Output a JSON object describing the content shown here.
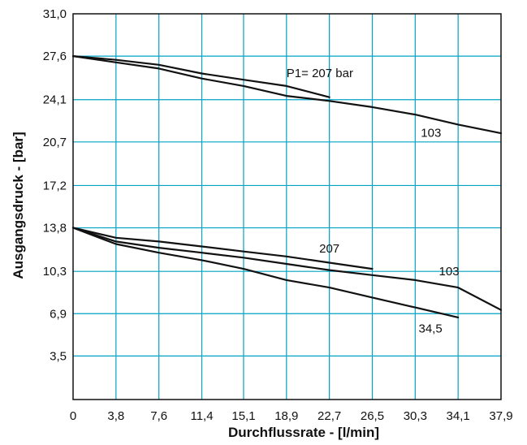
{
  "chart_data": {
    "type": "line",
    "title": "",
    "xlabel": "Durchflussrate - [l/min]",
    "ylabel": "Ausgangsdruck - [bar]",
    "xlim": [
      0,
      37.9
    ],
    "ylim": [
      0,
      31.0
    ],
    "x_ticks": [
      "0",
      "3,8",
      "7,6",
      "11,4",
      "15,1",
      "18,9",
      "22,7",
      "26,5",
      "30,3",
      "34,1",
      "37,9"
    ],
    "y_ticks": [
      "3,5",
      "6,9",
      "10,3",
      "13,8",
      "17,2",
      "20,7",
      "24,1",
      "27,6",
      "31,0"
    ],
    "grid": true,
    "grid_color": "#00a3c4",
    "line_color": "#111111",
    "series": [
      {
        "name": "P1= 207 bar",
        "values": [
          [
            0,
            27.6
          ],
          [
            3.8,
            27.3
          ],
          [
            7.6,
            26.9
          ],
          [
            11.4,
            26.2
          ],
          [
            15.1,
            25.7
          ],
          [
            18.9,
            25.2
          ],
          [
            22.7,
            24.3
          ]
        ]
      },
      {
        "name": "103",
        "values": [
          [
            0,
            27.6
          ],
          [
            3.8,
            27.1
          ],
          [
            7.6,
            26.6
          ],
          [
            11.4,
            25.8
          ],
          [
            15.1,
            25.2
          ],
          [
            18.9,
            24.4
          ],
          [
            22.7,
            24.0
          ],
          [
            26.5,
            23.5
          ],
          [
            30.3,
            22.9
          ],
          [
            34.1,
            22.1
          ],
          [
            37.9,
            21.4
          ]
        ]
      },
      {
        "name": "207",
        "values": [
          [
            0,
            13.8
          ],
          [
            3.8,
            13.0
          ],
          [
            7.6,
            12.7
          ],
          [
            11.4,
            12.3
          ],
          [
            15.1,
            11.9
          ],
          [
            18.9,
            11.5
          ],
          [
            22.7,
            11.0
          ],
          [
            26.5,
            10.5
          ]
        ]
      },
      {
        "name": "103",
        "values": [
          [
            0,
            13.8
          ],
          [
            3.8,
            12.7
          ],
          [
            7.6,
            12.2
          ],
          [
            11.4,
            11.8
          ],
          [
            15.1,
            11.4
          ],
          [
            18.9,
            10.9
          ],
          [
            22.7,
            10.4
          ],
          [
            26.5,
            10.0
          ],
          [
            30.3,
            9.6
          ],
          [
            34.1,
            9.0
          ],
          [
            37.9,
            7.2
          ]
        ]
      },
      {
        "name": "34,5",
        "values": [
          [
            0,
            13.8
          ],
          [
            3.8,
            12.5
          ],
          [
            7.6,
            11.8
          ],
          [
            11.4,
            11.2
          ],
          [
            15.1,
            10.5
          ],
          [
            18.9,
            9.6
          ],
          [
            22.7,
            9.0
          ],
          [
            26.5,
            8.2
          ],
          [
            30.3,
            7.4
          ],
          [
            34.1,
            6.6
          ]
        ]
      }
    ],
    "annotations": [
      {
        "text": "P1= 207 bar",
        "x": 18.9,
        "y": 25.9
      },
      {
        "text": "103",
        "x": 30.8,
        "y": 21.1
      },
      {
        "text": "207",
        "x": 21.8,
        "y": 11.8
      },
      {
        "text": "103",
        "x": 32.4,
        "y": 10.0
      },
      {
        "text": "34,5",
        "x": 30.6,
        "y": 5.4
      }
    ]
  }
}
